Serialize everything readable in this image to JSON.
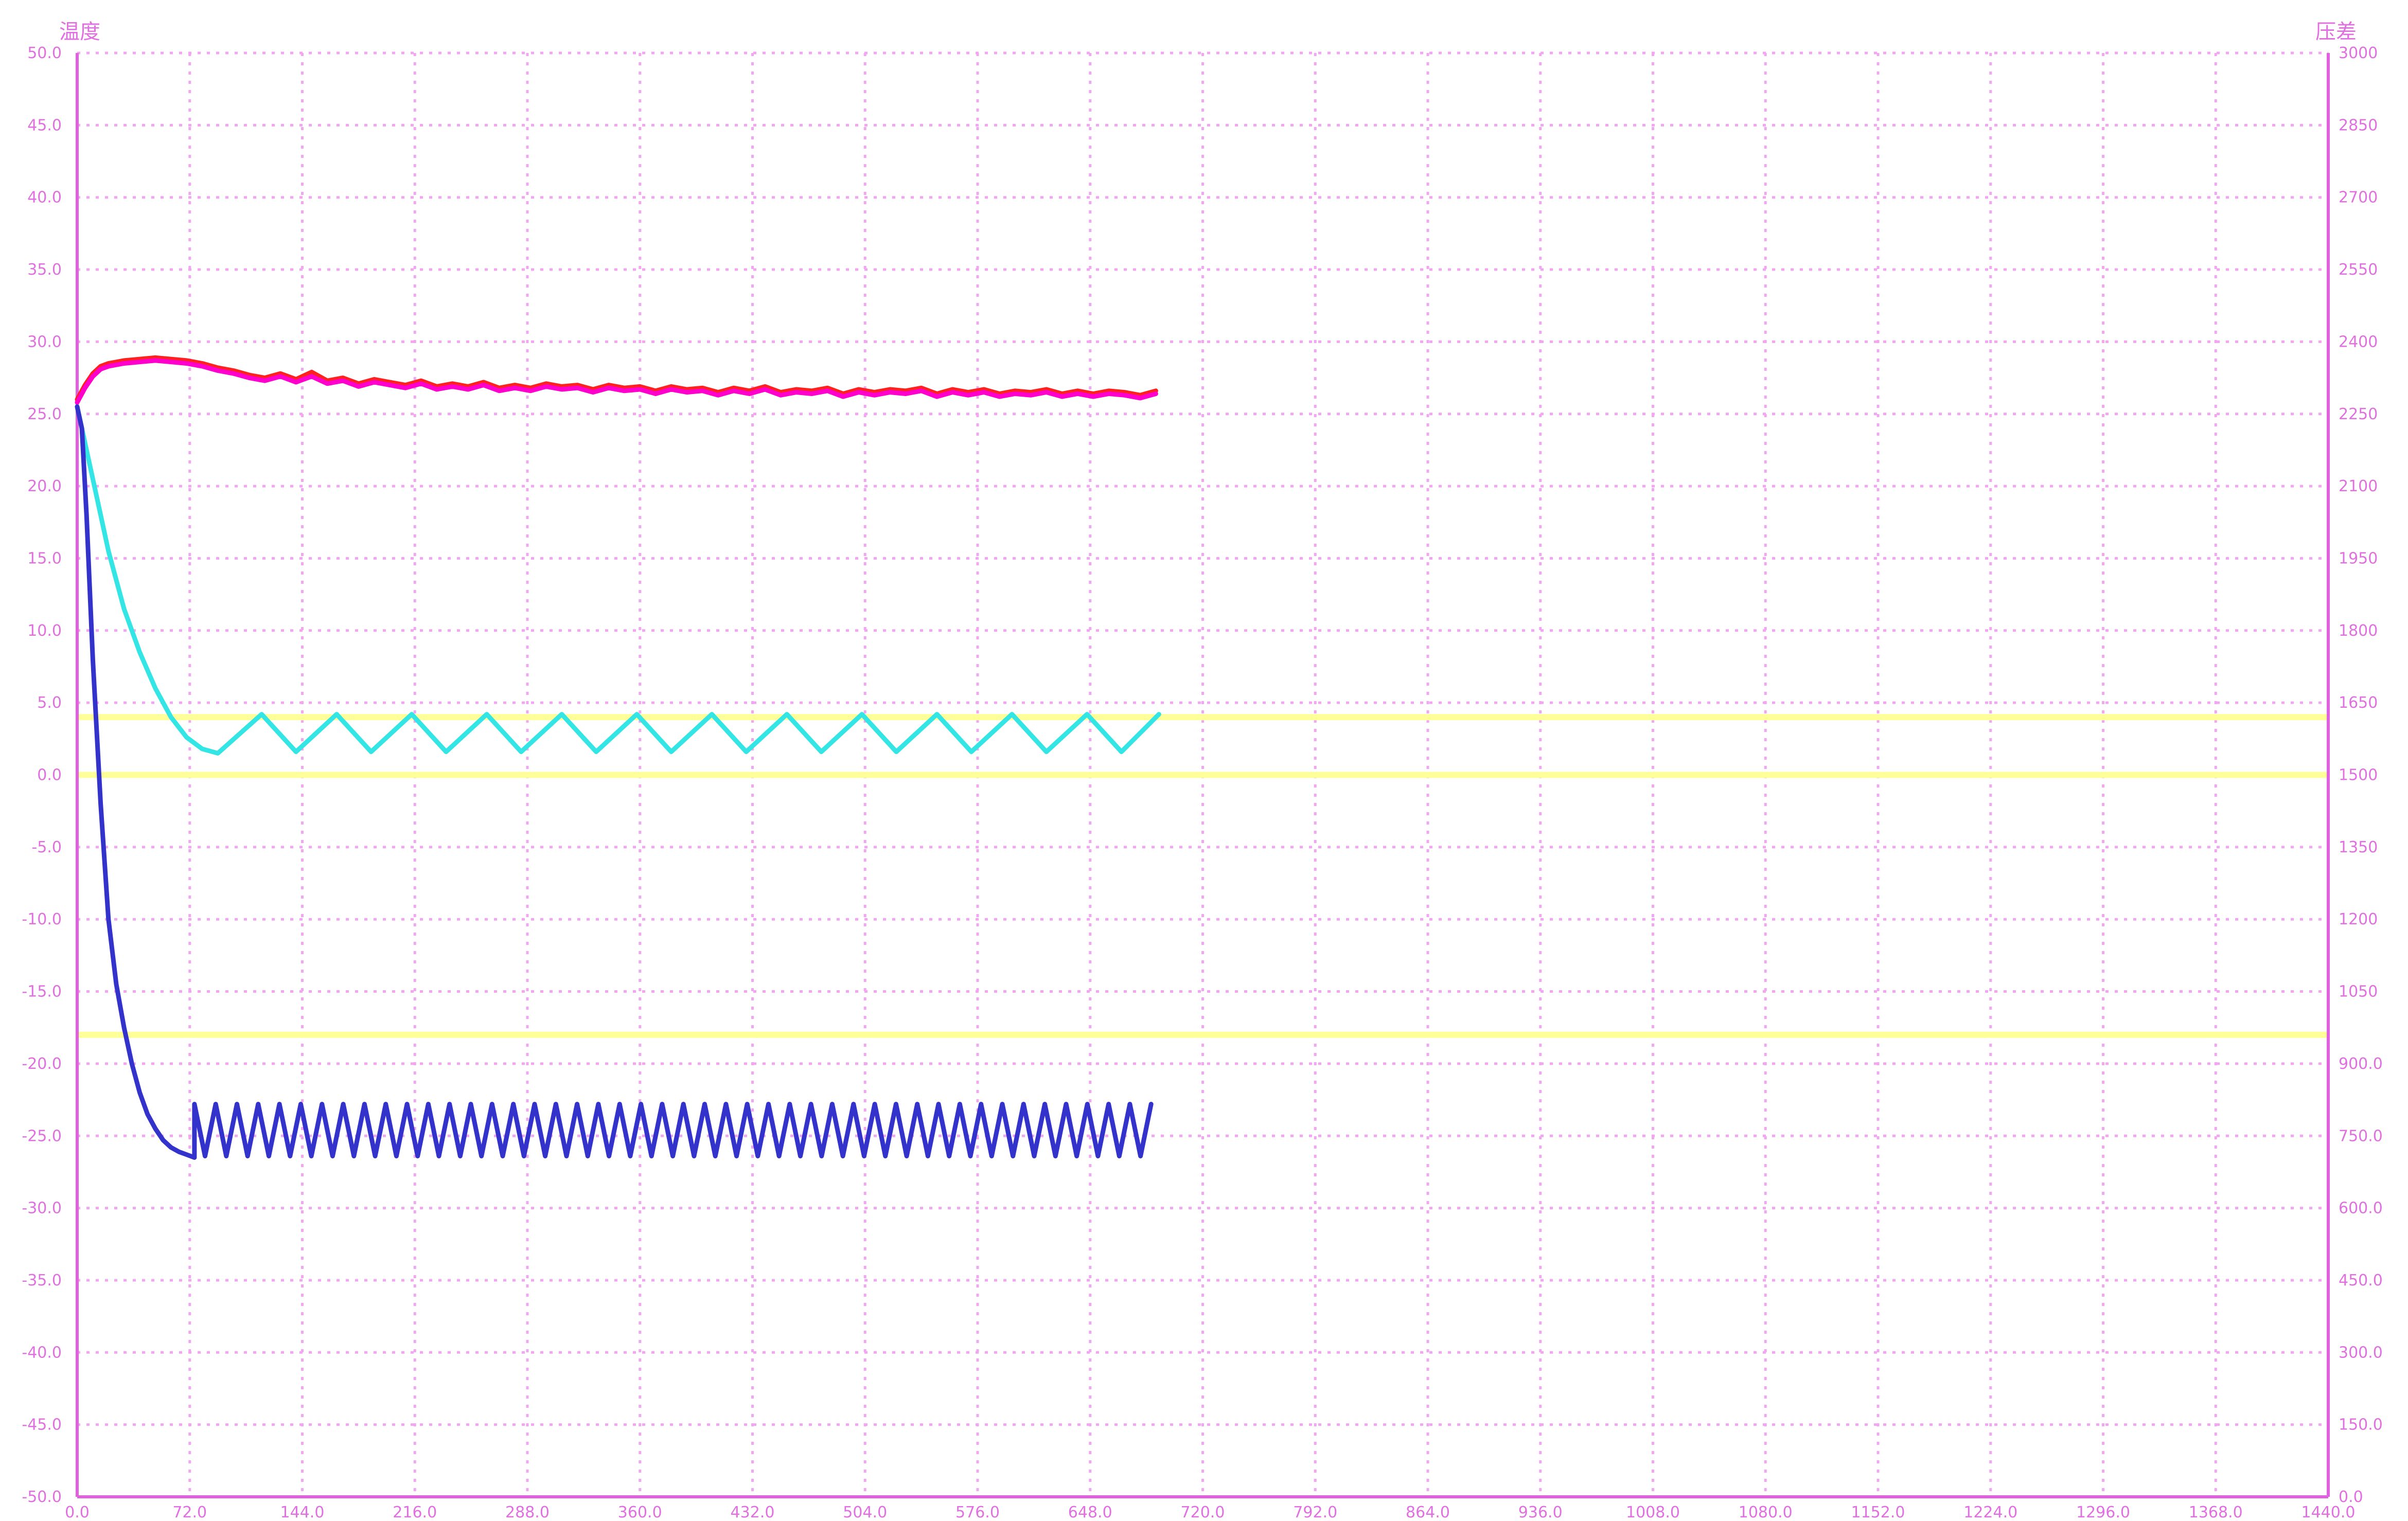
{
  "colors": {
    "background": "#ffffff",
    "grid": "#f2a6f2",
    "axis": "#e060e0",
    "tick_text": "#e070e0",
    "threshold": "#ffff99",
    "series_red": "#ff2020",
    "series_magenta": "#ff00cc",
    "series_cyan": "#33e5e5",
    "series_blue": "#3333cc"
  },
  "chart_data": {
    "type": "line",
    "title": "",
    "left_axis": {
      "label": "温度",
      "range": [
        -50,
        50
      ],
      "ticks": [
        "50.0",
        "45.0",
        "40.0",
        "35.0",
        "30.0",
        "25.0",
        "20.0",
        "15.0",
        "10.0",
        "5.0",
        "0.0",
        "-5.0",
        "-10.0",
        "-15.0",
        "-20.0",
        "-25.0",
        "-30.0",
        "-35.0",
        "-40.0",
        "-45.0",
        "-50.0"
      ]
    },
    "right_axis": {
      "label": "压差",
      "range": [
        0,
        3000
      ],
      "ticks": [
        "3000",
        "2850",
        "2700",
        "2550",
        "2400",
        "2250",
        "2100",
        "1950",
        "1800",
        "1650",
        "1500",
        "1350",
        "1200",
        "1050",
        "900.0",
        "750.0",
        "600.0",
        "450.0",
        "300.0",
        "150.0",
        "0.0"
      ]
    },
    "x_axis": {
      "range": [
        0,
        1440
      ],
      "ticks": [
        "0.0",
        "72.0",
        "144.0",
        "216.0",
        "288.0",
        "360.0",
        "432.0",
        "504.0",
        "576.0",
        "648.0",
        "720.0",
        "792.0",
        "864.0",
        "936.0",
        "1008.0",
        "1080.0",
        "1152.0",
        "1224.0",
        "1296.0",
        "1368.0",
        "1440.0"
      ]
    },
    "grid": true,
    "thresholds": [
      4.0,
      0.0,
      -18.0
    ],
    "series": [
      {
        "color_key": "series_red",
        "x": [
          0,
          5,
          10,
          15,
          20,
          30,
          40,
          50,
          60,
          70,
          80,
          90,
          100,
          110,
          120,
          130,
          140,
          150,
          160,
          170,
          180,
          190,
          200,
          210,
          220,
          230,
          240,
          250,
          260,
          270,
          280,
          290,
          300,
          310,
          320,
          330,
          340,
          350,
          360,
          370,
          380,
          390,
          400,
          410,
          420,
          430,
          440,
          450,
          460,
          470,
          480,
          490,
          500,
          510,
          520,
          530,
          540,
          550,
          560,
          570,
          580,
          590,
          600,
          610,
          620,
          630,
          640,
          650,
          660,
          670,
          680,
          690
        ],
        "y": [
          26.0,
          27.0,
          27.8,
          28.3,
          28.5,
          28.7,
          28.8,
          28.9,
          28.8,
          28.7,
          28.5,
          28.2,
          28.0,
          27.7,
          27.5,
          27.8,
          27.4,
          27.9,
          27.3,
          27.5,
          27.1,
          27.4,
          27.2,
          27.0,
          27.3,
          26.9,
          27.1,
          26.9,
          27.2,
          26.8,
          27.0,
          26.8,
          27.1,
          26.9,
          27.0,
          26.7,
          27.0,
          26.8,
          26.9,
          26.6,
          26.9,
          26.7,
          26.8,
          26.5,
          26.8,
          26.6,
          26.9,
          26.5,
          26.7,
          26.6,
          26.8,
          26.4,
          26.7,
          26.5,
          26.7,
          26.6,
          26.8,
          26.4,
          26.7,
          26.5,
          26.7,
          26.4,
          26.6,
          26.5,
          26.7,
          26.4,
          26.6,
          26.4,
          26.6,
          26.5,
          26.3,
          26.6
        ]
      },
      {
        "color_key": "series_magenta",
        "x": [
          0,
          5,
          10,
          15,
          20,
          30,
          40,
          50,
          60,
          70,
          80,
          90,
          100,
          110,
          120,
          130,
          140,
          150,
          160,
          170,
          180,
          190,
          200,
          210,
          220,
          230,
          240,
          250,
          260,
          270,
          280,
          290,
          300,
          310,
          320,
          330,
          340,
          350,
          360,
          370,
          380,
          390,
          400,
          410,
          420,
          430,
          440,
          450,
          460,
          470,
          480,
          490,
          500,
          510,
          520,
          530,
          540,
          550,
          560,
          570,
          580,
          590,
          600,
          610,
          620,
          630,
          640,
          650,
          660,
          670,
          680,
          690
        ],
        "y": [
          25.8,
          26.8,
          27.6,
          28.1,
          28.3,
          28.5,
          28.6,
          28.7,
          28.6,
          28.5,
          28.3,
          28.0,
          27.8,
          27.5,
          27.3,
          27.6,
          27.2,
          27.6,
          27.1,
          27.3,
          26.9,
          27.2,
          27.0,
          26.8,
          27.1,
          26.7,
          26.9,
          26.7,
          27.0,
          26.6,
          26.8,
          26.6,
          26.9,
          26.7,
          26.8,
          26.5,
          26.8,
          26.6,
          26.7,
          26.4,
          26.7,
          26.5,
          26.6,
          26.3,
          26.6,
          26.4,
          26.7,
          26.3,
          26.5,
          26.4,
          26.6,
          26.2,
          26.5,
          26.3,
          26.5,
          26.4,
          26.6,
          26.2,
          26.5,
          26.3,
          26.5,
          26.2,
          26.4,
          26.3,
          26.5,
          26.2,
          26.4,
          26.2,
          26.4,
          26.3,
          26.1,
          26.4
        ]
      },
      {
        "color_key": "series_cyan",
        "x": [
          0,
          10,
          20,
          30,
          40,
          50,
          60,
          70,
          80,
          90,
          118,
          140,
          166,
          188,
          214,
          236,
          262,
          284,
          310,
          332,
          358,
          380,
          406,
          428,
          454,
          476,
          502,
          524,
          550,
          572,
          598,
          620,
          646,
          668,
          692
        ],
        "y": [
          25.5,
          20.5,
          15.5,
          11.5,
          8.5,
          6.0,
          4.0,
          2.6,
          1.8,
          1.5,
          4.2,
          1.6,
          4.2,
          1.6,
          4.2,
          1.6,
          4.2,
          1.6,
          4.2,
          1.6,
          4.2,
          1.6,
          4.2,
          1.6,
          4.2,
          1.6,
          4.2,
          1.6,
          4.2,
          1.6,
          4.2,
          1.6,
          4.2,
          1.6,
          4.2
        ]
      },
      {
        "color_key": "series_blue",
        "x": [
          0,
          3,
          6,
          10,
          15,
          20,
          25,
          30,
          35,
          40,
          45,
          50,
          55,
          60,
          65,
          70,
          75
        ],
        "y": [
          25.5,
          24.0,
          18.0,
          8.0,
          -2.0,
          -10.0,
          -14.5,
          -17.5,
          -20.0,
          -22.0,
          -23.5,
          -24.5,
          -25.3,
          -25.8,
          -26.1,
          -26.3,
          -26.5
        ],
        "oscillation": {
          "x_start": 75,
          "x_end": 690,
          "period": 13.6,
          "y_high": -22.8,
          "y_low": -26.4
        }
      }
    ]
  }
}
